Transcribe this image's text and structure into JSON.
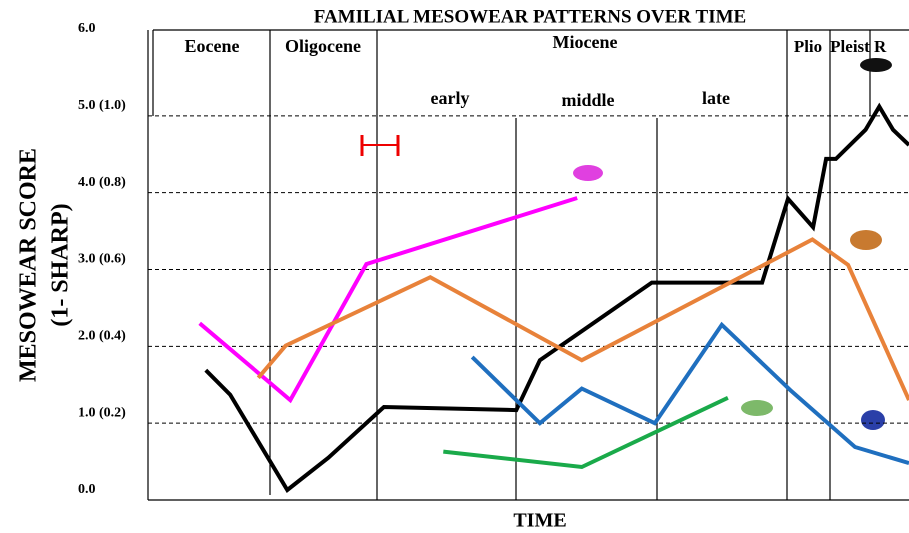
{
  "chart_data": {
    "type": "line",
    "title": "FAMILIAL MESOWEAR PATTERNS OVER TIME",
    "ylabel": [
      "MESOWEAR SCORE",
      "(1- SHARP)"
    ],
    "xlabel": "TIME",
    "epochs": [
      "Eocene",
      "Oligocene",
      "Miocene",
      "Plio",
      "Pleist",
      "R"
    ],
    "subepochs": [
      "early",
      "middle",
      "late"
    ],
    "xlim": [
      0,
      100
    ],
    "ylim": [
      0,
      6
    ],
    "yticks": [
      {
        "value": 0,
        "label": "0.0"
      },
      {
        "value": 1,
        "label": "1.0 (0.2)"
      },
      {
        "value": 2,
        "label": "2.0 (0.4)"
      },
      {
        "value": 3,
        "label": "3.0 (0.6)"
      },
      {
        "value": 4,
        "label": "4.0 (0.8)"
      },
      {
        "value": 5,
        "label": "5.0 (1.0)"
      },
      {
        "value": 6,
        "label": "6.0"
      }
    ],
    "grid": true,
    "series": [
      {
        "color": "#000000",
        "x": [
          7.6,
          10.8,
          18.3,
          23.7,
          31.0,
          48.4,
          51.5,
          66.2,
          80.7,
          84.1,
          87.4,
          89.1,
          90.4,
          94.3,
          96.1,
          97.9,
          100
        ],
        "values": [
          1.69,
          1.37,
          0.13,
          0.55,
          1.21,
          1.17,
          1.82,
          2.83,
          2.83,
          3.92,
          3.55,
          4.44,
          4.44,
          4.82,
          5.12,
          4.82,
          4.62
        ]
      },
      {
        "color": "#ff00ff",
        "x": [
          6.8,
          18.7,
          28.7,
          56.4
        ],
        "values": [
          2.3,
          1.3,
          3.07,
          3.93
        ]
      },
      {
        "color": "#e8823a",
        "x": [
          14.5,
          18.1,
          37.1,
          57.0,
          87.3,
          92.0,
          100
        ],
        "values": [
          1.59,
          2.01,
          2.9,
          1.82,
          3.39,
          3.06,
          1.3
        ]
      },
      {
        "color": "#1f6fbf",
        "x": [
          42.6,
          51.5,
          57.0,
          66.6,
          75.4,
          84.4,
          92.9,
          100
        ],
        "values": [
          1.86,
          1.0,
          1.45,
          1.0,
          2.28,
          1.43,
          0.69,
          0.48
        ]
      },
      {
        "color": "#1aaa4a",
        "x": [
          38.8,
          57.0,
          76.2
        ],
        "values": [
          0.63,
          0.43,
          1.33
        ]
      }
    ]
  }
}
